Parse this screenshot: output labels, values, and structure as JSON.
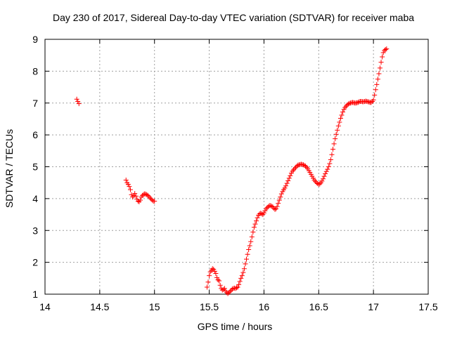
{
  "chart_data": {
    "type": "scatter",
    "title": "Day 230 of 2017, Sidereal Day-to-day VTEC variation (SDTVAR) for receiver maba",
    "xlabel": "GPS time / hours",
    "ylabel": "SDTVAR / TECUs",
    "xlim": [
      14,
      17.5
    ],
    "ylim": [
      1,
      9
    ],
    "x_ticks": [
      14,
      14.5,
      15,
      15.5,
      16,
      16.5,
      17,
      17.5
    ],
    "x_tick_labels": [
      "14",
      "14.5",
      "15",
      "15.5",
      "16",
      "16.5",
      "17",
      "17.5"
    ],
    "y_ticks": [
      1,
      2,
      3,
      4,
      5,
      6,
      7,
      8,
      9
    ],
    "y_tick_labels": [
      "1",
      "2",
      "3",
      "4",
      "5",
      "6",
      "7",
      "8",
      "9"
    ],
    "grid": true,
    "marker": "plus",
    "color": "#ff0000",
    "series": [
      {
        "points": [
          [
            14.29,
            7.12
          ],
          [
            14.3,
            7.05
          ],
          [
            14.31,
            6.98
          ],
          [
            14.74,
            4.58
          ],
          [
            14.75,
            4.5
          ],
          [
            14.76,
            4.45
          ],
          [
            14.77,
            4.38
          ],
          [
            14.78,
            4.28
          ],
          [
            14.79,
            4.12
          ],
          [
            14.8,
            4.05
          ],
          [
            14.81,
            4.1
          ],
          [
            14.82,
            4.16
          ],
          [
            14.83,
            4.08
          ],
          [
            14.84,
            3.98
          ],
          [
            14.85,
            3.92
          ],
          [
            14.86,
            3.9
          ],
          [
            14.87,
            3.95
          ],
          [
            14.88,
            4.05
          ],
          [
            14.89,
            4.1
          ],
          [
            14.9,
            4.13
          ],
          [
            14.91,
            4.15
          ],
          [
            14.92,
            4.14
          ],
          [
            14.93,
            4.12
          ],
          [
            14.94,
            4.1
          ],
          [
            14.95,
            4.06
          ],
          [
            14.96,
            4.02
          ],
          [
            14.97,
            3.98
          ],
          [
            14.98,
            3.95
          ],
          [
            14.99,
            3.92
          ],
          [
            15.0,
            3.92
          ],
          [
            15.48,
            1.22
          ],
          [
            15.49,
            1.38
          ],
          [
            15.5,
            1.58
          ],
          [
            15.51,
            1.7
          ],
          [
            15.52,
            1.75
          ],
          [
            15.53,
            1.8
          ],
          [
            15.54,
            1.78
          ],
          [
            15.55,
            1.72
          ],
          [
            15.56,
            1.65
          ],
          [
            15.57,
            1.52
          ],
          [
            15.58,
            1.45
          ],
          [
            15.59,
            1.42
          ],
          [
            15.6,
            1.28
          ],
          [
            15.61,
            1.18
          ],
          [
            15.62,
            1.13
          ],
          [
            15.63,
            1.15
          ],
          [
            15.64,
            1.18
          ],
          [
            15.65,
            1.1
          ],
          [
            15.66,
            1.05
          ],
          [
            15.67,
            1.02
          ],
          [
            15.68,
            1.05
          ],
          [
            15.69,
            1.08
          ],
          [
            15.7,
            1.12
          ],
          [
            15.71,
            1.16
          ],
          [
            15.72,
            1.18
          ],
          [
            15.73,
            1.19
          ],
          [
            15.74,
            1.18
          ],
          [
            15.75,
            1.2
          ],
          [
            15.76,
            1.22
          ],
          [
            15.77,
            1.3
          ],
          [
            15.78,
            1.4
          ],
          [
            15.79,
            1.5
          ],
          [
            15.8,
            1.58
          ],
          [
            15.81,
            1.68
          ],
          [
            15.82,
            1.8
          ],
          [
            15.83,
            1.95
          ],
          [
            15.84,
            2.1
          ],
          [
            15.85,
            2.25
          ],
          [
            15.86,
            2.4
          ],
          [
            15.87,
            2.52
          ],
          [
            15.88,
            2.65
          ],
          [
            15.89,
            2.8
          ],
          [
            15.9,
            2.95
          ],
          [
            15.91,
            3.1
          ],
          [
            15.92,
            3.2
          ],
          [
            15.93,
            3.3
          ],
          [
            15.94,
            3.4
          ],
          [
            15.95,
            3.48
          ],
          [
            15.96,
            3.52
          ],
          [
            15.97,
            3.54
          ],
          [
            15.98,
            3.52
          ],
          [
            15.99,
            3.5
          ],
          [
            16.0,
            3.55
          ],
          [
            16.01,
            3.62
          ],
          [
            16.02,
            3.68
          ],
          [
            16.03,
            3.72
          ],
          [
            16.04,
            3.75
          ],
          [
            16.05,
            3.78
          ],
          [
            16.06,
            3.78
          ],
          [
            16.07,
            3.76
          ],
          [
            16.08,
            3.74
          ],
          [
            16.09,
            3.7
          ],
          [
            16.1,
            3.66
          ],
          [
            16.11,
            3.68
          ],
          [
            16.12,
            3.75
          ],
          [
            16.13,
            3.85
          ],
          [
            16.14,
            3.95
          ],
          [
            16.15,
            4.05
          ],
          [
            16.16,
            4.15
          ],
          [
            16.17,
            4.22
          ],
          [
            16.18,
            4.28
          ],
          [
            16.19,
            4.33
          ],
          [
            16.2,
            4.4
          ],
          [
            16.21,
            4.48
          ],
          [
            16.22,
            4.56
          ],
          [
            16.23,
            4.64
          ],
          [
            16.24,
            4.72
          ],
          [
            16.25,
            4.8
          ],
          [
            16.26,
            4.86
          ],
          [
            16.27,
            4.9
          ],
          [
            16.28,
            4.94
          ],
          [
            16.29,
            4.98
          ],
          [
            16.3,
            5.02
          ],
          [
            16.31,
            5.05
          ],
          [
            16.32,
            5.06
          ],
          [
            16.33,
            5.07
          ],
          [
            16.34,
            5.08
          ],
          [
            16.35,
            5.07
          ],
          [
            16.36,
            5.06
          ],
          [
            16.37,
            5.04
          ],
          [
            16.38,
            5.02
          ],
          [
            16.39,
            4.98
          ],
          [
            16.4,
            4.94
          ],
          [
            16.41,
            4.88
          ],
          [
            16.42,
            4.82
          ],
          [
            16.43,
            4.76
          ],
          [
            16.44,
            4.7
          ],
          [
            16.45,
            4.64
          ],
          [
            16.46,
            4.58
          ],
          [
            16.47,
            4.54
          ],
          [
            16.48,
            4.5
          ],
          [
            16.49,
            4.47
          ],
          [
            16.5,
            4.45
          ],
          [
            16.51,
            4.46
          ],
          [
            16.52,
            4.5
          ],
          [
            16.53,
            4.55
          ],
          [
            16.54,
            4.62
          ],
          [
            16.55,
            4.7
          ],
          [
            16.56,
            4.78
          ],
          [
            16.57,
            4.85
          ],
          [
            16.58,
            4.92
          ],
          [
            16.59,
            5.0
          ],
          [
            16.6,
            5.1
          ],
          [
            16.61,
            5.22
          ],
          [
            16.62,
            5.38
          ],
          [
            16.63,
            5.55
          ],
          [
            16.64,
            5.72
          ],
          [
            16.65,
            5.88
          ],
          [
            16.66,
            6.02
          ],
          [
            16.67,
            6.15
          ],
          [
            16.68,
            6.28
          ],
          [
            16.69,
            6.4
          ],
          [
            16.7,
            6.52
          ],
          [
            16.71,
            6.62
          ],
          [
            16.72,
            6.72
          ],
          [
            16.73,
            6.8
          ],
          [
            16.74,
            6.86
          ],
          [
            16.75,
            6.9
          ],
          [
            16.76,
            6.94
          ],
          [
            16.77,
            6.97
          ],
          [
            16.78,
            6.99
          ],
          [
            16.79,
            7.0
          ],
          [
            16.8,
            7.01
          ],
          [
            16.81,
            7.02
          ],
          [
            16.82,
            7.01
          ],
          [
            16.83,
            7.0
          ],
          [
            16.84,
            7.0
          ],
          [
            16.85,
            7.01
          ],
          [
            16.86,
            7.02
          ],
          [
            16.87,
            7.04
          ],
          [
            16.88,
            7.05
          ],
          [
            16.89,
            7.05
          ],
          [
            16.9,
            7.04
          ],
          [
            16.91,
            7.04
          ],
          [
            16.92,
            7.05
          ],
          [
            16.93,
            7.06
          ],
          [
            16.94,
            7.05
          ],
          [
            16.95,
            7.04
          ],
          [
            16.96,
            7.03
          ],
          [
            16.97,
            7.02
          ],
          [
            16.98,
            7.02
          ],
          [
            16.99,
            7.05
          ],
          [
            17.0,
            7.1
          ],
          [
            17.01,
            7.25
          ],
          [
            17.02,
            7.42
          ],
          [
            17.03,
            7.58
          ],
          [
            17.04,
            7.75
          ],
          [
            17.05,
            7.92
          ],
          [
            17.06,
            8.1
          ],
          [
            17.07,
            8.28
          ],
          [
            17.08,
            8.45
          ],
          [
            17.09,
            8.58
          ],
          [
            17.1,
            8.65
          ],
          [
            17.11,
            8.68
          ],
          [
            17.12,
            8.7
          ]
        ]
      }
    ]
  }
}
